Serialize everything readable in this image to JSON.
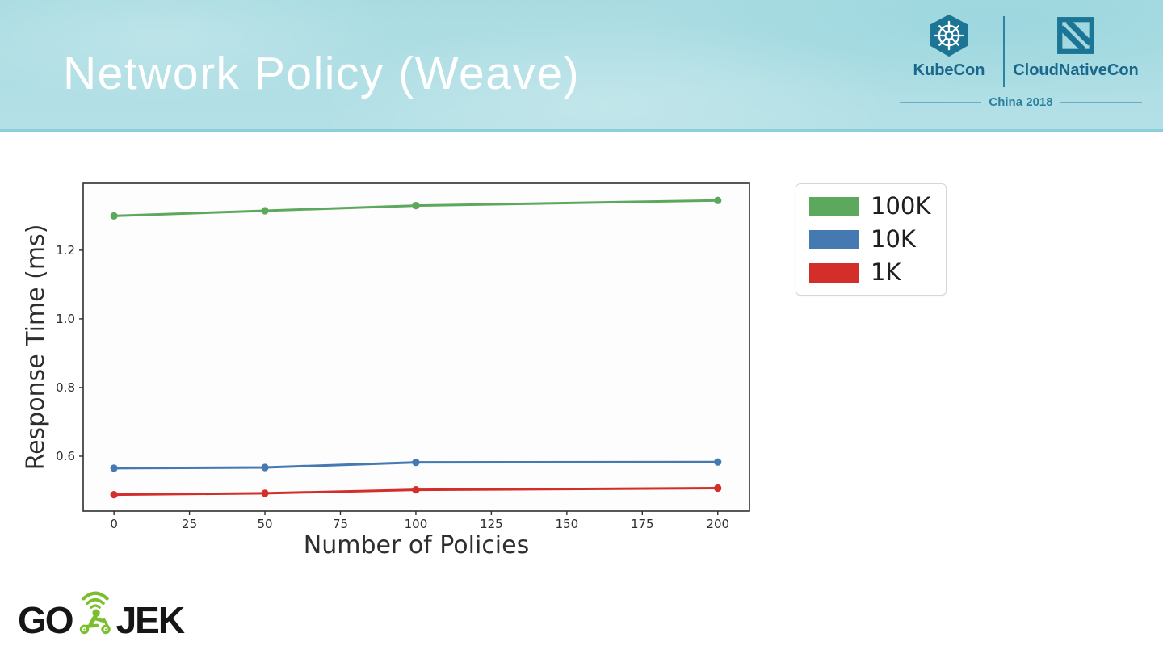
{
  "slide": {
    "title": "Network Policy (Weave)"
  },
  "conference": {
    "kubecon_label": "KubeCon",
    "cloudnativecon_label": "CloudNativeCon",
    "event_label": "China 2018",
    "logo_color": "#1d7596",
    "kubernetes_icon": "kubernetes-helm-wheel",
    "cloudnative_icon": "cloudnative-hatched-square"
  },
  "footer": {
    "brand_go": "GO",
    "brand_jek": "JEK",
    "scooter_icon": "gojek-scooter-rider",
    "brand_green": "#7cbf2e",
    "brand_black": "#161616"
  },
  "chart_data": {
    "type": "line",
    "title": "",
    "xlabel": "Number of Policies",
    "ylabel": "Response Time (ms)",
    "x": [
      0,
      50,
      100,
      200
    ],
    "series": [
      {
        "name": "100K",
        "color": "#5CA85C",
        "values": [
          1.3,
          1.315,
          1.33,
          1.345
        ]
      },
      {
        "name": "10K",
        "color": "#4579B2",
        "values": [
          0.565,
          0.567,
          0.582,
          0.583
        ]
      },
      {
        "name": "1K",
        "color": "#D32E2A",
        "values": [
          0.488,
          0.492,
          0.502,
          0.507
        ]
      }
    ],
    "xlim": [
      -10.2,
      210.5
    ],
    "ylim": [
      0.44,
      1.395
    ],
    "xticks": [
      0,
      25,
      50,
      75,
      100,
      125,
      150,
      175,
      200
    ],
    "yticks": [
      0.6,
      0.8,
      1.0,
      1.2
    ],
    "grid": false,
    "legend_position": "outside-right",
    "marker": "circle",
    "axis_color": "#2e2e2e"
  }
}
